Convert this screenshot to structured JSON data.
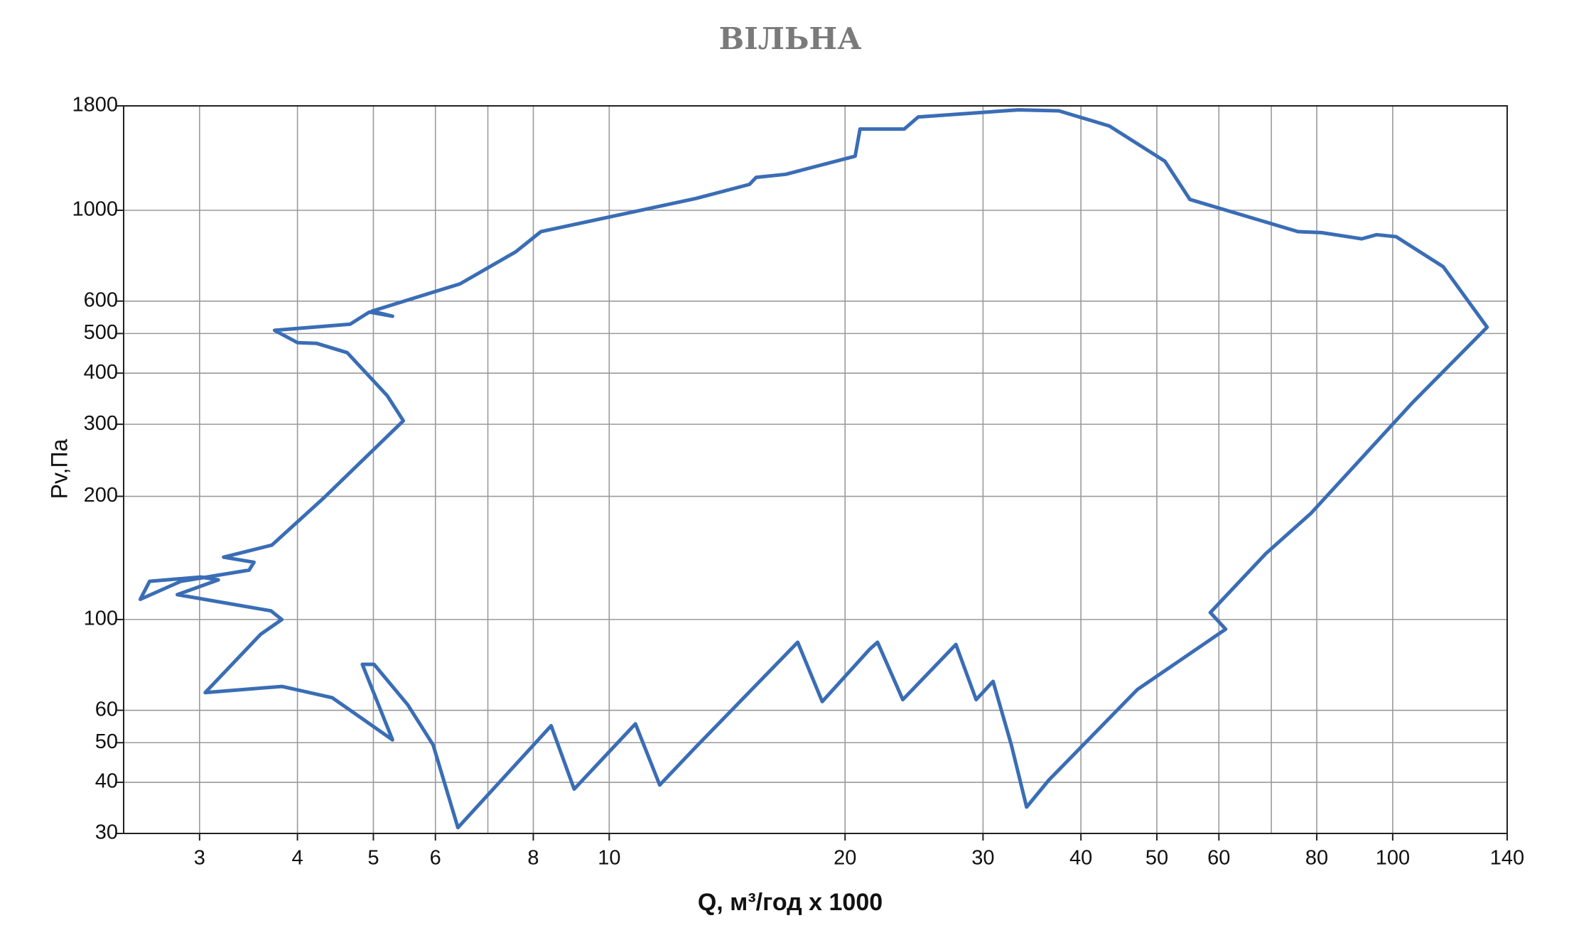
{
  "chart_data": {
    "type": "line",
    "title": "ВІЛЬНА",
    "x_label": "Q, м³/год x 1000",
    "y_label": "Pv,Па",
    "xscale": "log",
    "yscale": "log",
    "grid": true,
    "closed": true,
    "xlim": [
      2.4,
      140
    ],
    "ylim": [
      30,
      1800
    ],
    "xticks": [
      3,
      4,
      5,
      6,
      8,
      10,
      20,
      30,
      40,
      50,
      60,
      80,
      100,
      140
    ],
    "xgrid_minor": [
      7,
      70
    ],
    "yticks": [
      30,
      40,
      50,
      60,
      100,
      200,
      300,
      400,
      500,
      600,
      1000,
      1800
    ],
    "series": [
      {
        "color": "#3a6db5",
        "x": [
          3.74,
          4.67,
          4.94,
          5.29,
          4.98,
          6.45,
          7.6,
          8.18,
          12.9,
          15.1,
          15.4,
          16.8,
          20.6,
          20.9,
          23.8,
          24.8,
          33.3,
          37.5,
          43.5,
          51.2,
          55.1,
          75.7,
          81.1,
          91.3,
          95.4,
          101,
          116,
          132,
          106,
          78.7,
          68.9,
          58.5,
          61.2,
          47.2,
          36.4,
          34.1,
          32.6,
          30.9,
          29.4,
          27.7,
          23.7,
          22.0,
          21.5,
          18.7,
          17.4,
          12.9,
          11.6,
          10.8,
          9.02,
          8.43,
          6.41,
          5.96,
          5.53,
          5.01,
          4.84,
          5.29,
          4.43,
          3.82,
          3.05,
          3.59,
          3.82,
          3.7,
          2.81,
          3.17,
          3.01,
          2.59,
          2.52,
          2.84,
          3.47,
          3.52,
          3.22,
          3.71,
          4.32,
          5.46,
          5.21,
          4.63,
          4.23,
          4.0
        ],
        "values": [
          509,
          527,
          564,
          551,
          567,
          661,
          792,
          887,
          1069,
          1157,
          1204,
          1225,
          1356,
          1580,
          1580,
          1691,
          1760,
          1750,
          1607,
          1318,
          1063,
          887,
          882,
          852,
          872,
          862,
          728,
          518,
          339,
          182,
          145,
          104,
          94.7,
          67.4,
          40.5,
          34.8,
          49.4,
          70.6,
          63.7,
          86.9,
          63.7,
          88.0,
          84.6,
          63.0,
          88.0,
          48.8,
          39.4,
          55.6,
          38.5,
          55.0,
          31.0,
          49.4,
          61.9,
          77.7,
          77.7,
          50.8,
          64.4,
          68.6,
          66.3,
          92.0,
          100,
          105,
          115,
          125,
          127,
          124,
          112,
          124,
          132,
          138,
          142,
          152,
          198,
          306,
          352,
          449,
          473,
          475
        ]
      }
    ]
  }
}
